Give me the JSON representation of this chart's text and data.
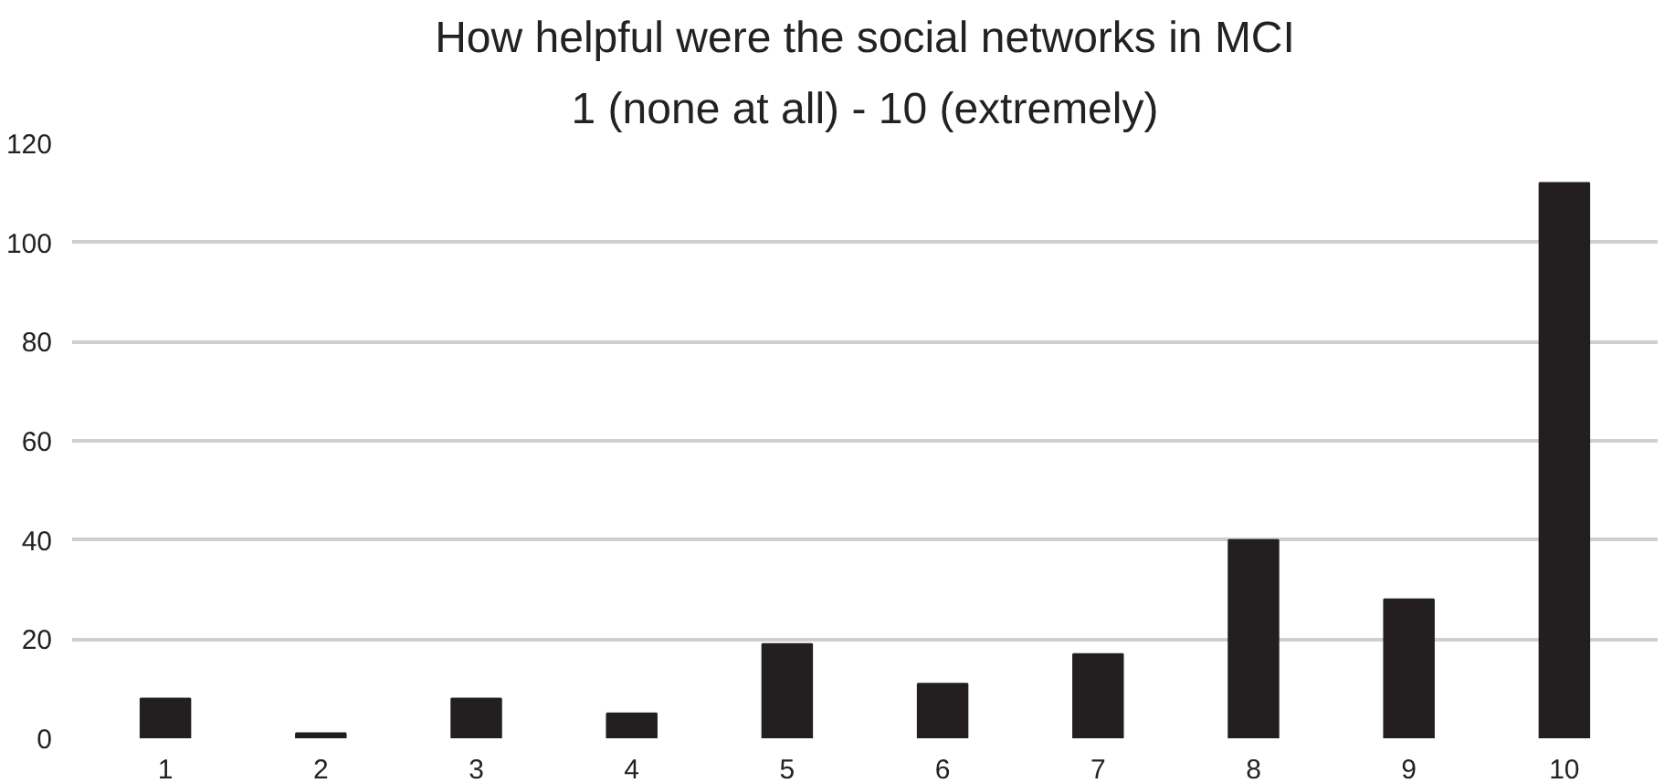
{
  "chart_data": {
    "type": "bar",
    "title": "How helpful were the social networks in MCI",
    "subtitle": "1 (none at all) - 10 (extremely)",
    "categories": [
      "1",
      "2",
      "3",
      "4",
      "5",
      "6",
      "7",
      "8",
      "9",
      "10"
    ],
    "values": [
      8,
      1,
      8,
      5,
      19,
      11,
      17,
      40,
      28,
      112
    ],
    "color": "#231f20",
    "ylim": [
      0,
      120
    ],
    "yticks": [
      0,
      20,
      40,
      60,
      80,
      100,
      120
    ],
    "grid": "y"
  }
}
